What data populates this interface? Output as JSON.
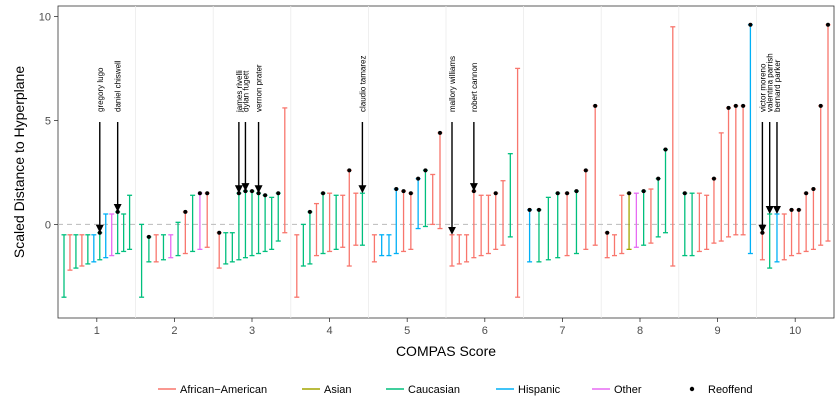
{
  "chart_data": {
    "type": "errorbar-scatter",
    "title": "",
    "xlabel": "COMPAS Score",
    "ylabel": "Scaled Distance to Hyperplane",
    "x_categories": [
      1,
      2,
      3,
      4,
      5,
      6,
      7,
      8,
      9,
      10
    ],
    "ylim": [
      -4.5,
      10.5
    ],
    "yticks": [
      0,
      5,
      10
    ],
    "grid": true,
    "legend_position": "bottom",
    "colors": {
      "African-American": "#F8766D",
      "Asian": "#A3A500",
      "Caucasian": "#00BF7D",
      "Hispanic": "#00B0F6",
      "Other": "#E76BF3",
      "Reoffend": "#000000"
    },
    "legend": {
      "race_entries": [
        "African−American",
        "Asian",
        "Caucasian",
        "Hispanic",
        "Other"
      ],
      "point_entry": "Reoffend"
    },
    "points": [
      {
        "score": 1,
        "race": "Caucasian",
        "y": -0.5,
        "lo": -3.5,
        "hi": -0.5,
        "reoffend": false
      },
      {
        "score": 1,
        "race": "African-American",
        "y": -0.5,
        "lo": -2.2,
        "hi": -0.5,
        "reoffend": false
      },
      {
        "score": 1,
        "race": "Caucasian",
        "y": -0.5,
        "lo": -2.1,
        "hi": -0.5,
        "reoffend": false
      },
      {
        "score": 1,
        "race": "African-American",
        "y": -0.5,
        "lo": -2.0,
        "hi": -0.5,
        "reoffend": false
      },
      {
        "score": 1,
        "race": "Caucasian",
        "y": -0.5,
        "lo": -1.9,
        "hi": -0.5,
        "reoffend": false
      },
      {
        "score": 1,
        "race": "Hispanic",
        "y": -0.5,
        "lo": -1.8,
        "hi": -0.5,
        "reoffend": false
      },
      {
        "score": 1,
        "race": "Caucasian",
        "y": -0.4,
        "lo": -1.7,
        "hi": -0.4,
        "reoffend": true
      },
      {
        "score": 1,
        "race": "Hispanic",
        "y": 0.5,
        "lo": -1.6,
        "hi": 0.5,
        "reoffend": false
      },
      {
        "score": 1,
        "race": "Other",
        "y": 0.5,
        "lo": -1.5,
        "hi": 0.5,
        "reoffend": false
      },
      {
        "score": 1,
        "race": "Caucasian",
        "y": 0.6,
        "lo": -1.4,
        "hi": 0.6,
        "reoffend": true
      },
      {
        "score": 1,
        "race": "Caucasian",
        "y": 0.5,
        "lo": -1.3,
        "hi": 0.5,
        "reoffend": false
      },
      {
        "score": 1,
        "race": "Caucasian",
        "y": 1.4,
        "lo": -1.2,
        "hi": 1.4,
        "reoffend": false
      },
      {
        "score": 2,
        "race": "Caucasian",
        "y": 0.0,
        "lo": -3.5,
        "hi": 0.0,
        "reoffend": false
      },
      {
        "score": 2,
        "race": "Caucasian",
        "y": -0.6,
        "lo": -1.8,
        "hi": -0.6,
        "reoffend": true
      },
      {
        "score": 2,
        "race": "African-American",
        "y": -0.5,
        "lo": -1.8,
        "hi": -0.5,
        "reoffend": false
      },
      {
        "score": 2,
        "race": "Caucasian",
        "y": -0.5,
        "lo": -1.7,
        "hi": -0.5,
        "reoffend": false
      },
      {
        "score": 2,
        "race": "Other",
        "y": -0.5,
        "lo": -1.6,
        "hi": -0.5,
        "reoffend": false
      },
      {
        "score": 2,
        "race": "Caucasian",
        "y": 0.1,
        "lo": -1.5,
        "hi": 0.1,
        "reoffend": false
      },
      {
        "score": 2,
        "race": "African-American",
        "y": 0.6,
        "lo": -1.4,
        "hi": 0.6,
        "reoffend": true
      },
      {
        "score": 2,
        "race": "Caucasian",
        "y": 1.4,
        "lo": -1.3,
        "hi": 1.4,
        "reoffend": false
      },
      {
        "score": 2,
        "race": "Other",
        "y": 1.5,
        "lo": -1.2,
        "hi": 1.5,
        "reoffend": true
      },
      {
        "score": 2,
        "race": "African-American",
        "y": 1.5,
        "lo": -1.1,
        "hi": 1.5,
        "reoffend": true
      },
      {
        "score": 3,
        "race": "African-American",
        "y": -0.4,
        "lo": -2.1,
        "hi": -0.4,
        "reoffend": true
      },
      {
        "score": 3,
        "race": "Caucasian",
        "y": -0.4,
        "lo": -1.9,
        "hi": -0.4,
        "reoffend": false
      },
      {
        "score": 3,
        "race": "Caucasian",
        "y": -0.4,
        "lo": -1.8,
        "hi": -0.4,
        "reoffend": false
      },
      {
        "score": 3,
        "race": "Caucasian",
        "y": 1.5,
        "lo": -1.7,
        "hi": 1.5,
        "reoffend": true
      },
      {
        "score": 3,
        "race": "Caucasian",
        "y": 1.6,
        "lo": -1.6,
        "hi": 1.6,
        "reoffend": true
      },
      {
        "score": 3,
        "race": "Caucasian",
        "y": 1.6,
        "lo": -1.5,
        "hi": 1.6,
        "reoffend": true
      },
      {
        "score": 3,
        "race": "Caucasian",
        "y": 1.5,
        "lo": -1.4,
        "hi": 1.5,
        "reoffend": true
      },
      {
        "score": 3,
        "race": "Caucasian",
        "y": 1.4,
        "lo": -1.3,
        "hi": 1.4,
        "reoffend": true
      },
      {
        "score": 3,
        "race": "Caucasian",
        "y": 1.3,
        "lo": -1.2,
        "hi": 1.3,
        "reoffend": false
      },
      {
        "score": 3,
        "race": "Caucasian",
        "y": 1.5,
        "lo": -0.8,
        "hi": 1.5,
        "reoffend": true
      },
      {
        "score": 3,
        "race": "African-American",
        "y": 5.6,
        "lo": -0.4,
        "hi": 5.6,
        "reoffend": false
      },
      {
        "score": 4,
        "race": "African-American",
        "y": -0.5,
        "lo": -3.5,
        "hi": -0.5,
        "reoffend": false
      },
      {
        "score": 4,
        "race": "Caucasian",
        "y": 0.0,
        "lo": -2.0,
        "hi": 0.0,
        "reoffend": false
      },
      {
        "score": 4,
        "race": "Caucasian",
        "y": 0.6,
        "lo": -1.9,
        "hi": 0.6,
        "reoffend": true
      },
      {
        "score": 4,
        "race": "African-American",
        "y": 1.0,
        "lo": -1.5,
        "hi": 1.0,
        "reoffend": false
      },
      {
        "score": 4,
        "race": "Caucasian",
        "y": 1.5,
        "lo": -1.4,
        "hi": 1.5,
        "reoffend": true
      },
      {
        "score": 4,
        "race": "African-American",
        "y": 1.5,
        "lo": -1.3,
        "hi": 1.5,
        "reoffend": false
      },
      {
        "score": 4,
        "race": "Caucasian",
        "y": 1.4,
        "lo": -1.2,
        "hi": 1.4,
        "reoffend": false
      },
      {
        "score": 4,
        "race": "African-American",
        "y": 1.4,
        "lo": -1.1,
        "hi": 1.4,
        "reoffend": false
      },
      {
        "score": 4,
        "race": "African-American",
        "y": 2.6,
        "lo": -2.0,
        "hi": 2.6,
        "reoffend": true
      },
      {
        "score": 4,
        "race": "African-American",
        "y": 1.5,
        "lo": -1.0,
        "hi": 1.5,
        "reoffend": false
      },
      {
        "score": 4,
        "race": "Caucasian",
        "y": 1.5,
        "lo": -1.0,
        "hi": 1.5,
        "reoffend": false
      },
      {
        "score": 5,
        "race": "African-American",
        "y": -0.5,
        "lo": -1.8,
        "hi": -0.5,
        "reoffend": false
      },
      {
        "score": 5,
        "race": "Hispanic",
        "y": -0.5,
        "lo": -1.5,
        "hi": -0.5,
        "reoffend": false
      },
      {
        "score": 5,
        "race": "Hispanic",
        "y": -0.5,
        "lo": -1.5,
        "hi": -0.5,
        "reoffend": false
      },
      {
        "score": 5,
        "race": "Hispanic",
        "y": 1.7,
        "lo": -1.4,
        "hi": 1.7,
        "reoffend": true
      },
      {
        "score": 5,
        "race": "African-American",
        "y": 1.6,
        "lo": -1.3,
        "hi": 1.6,
        "reoffend": true
      },
      {
        "score": 5,
        "race": "African-American",
        "y": 1.5,
        "lo": -1.2,
        "hi": 1.5,
        "reoffend": true
      },
      {
        "score": 5,
        "race": "Hispanic",
        "y": 2.2,
        "lo": -0.2,
        "hi": 2.2,
        "reoffend": true
      },
      {
        "score": 5,
        "race": "Caucasian",
        "y": 2.6,
        "lo": -0.1,
        "hi": 2.6,
        "reoffend": true
      },
      {
        "score": 5,
        "race": "African-American",
        "y": 2.4,
        "lo": 0.0,
        "hi": 2.4,
        "reoffend": false
      },
      {
        "score": 5,
        "race": "African-American",
        "y": 4.4,
        "lo": -0.2,
        "hi": 4.4,
        "reoffend": true
      },
      {
        "score": 6,
        "race": "African-American",
        "y": -0.5,
        "lo": -2.0,
        "hi": -0.5,
        "reoffend": false
      },
      {
        "score": 6,
        "race": "African-American",
        "y": -0.5,
        "lo": -1.9,
        "hi": -0.5,
        "reoffend": false
      },
      {
        "score": 6,
        "race": "African-American",
        "y": -0.5,
        "lo": -1.8,
        "hi": -0.5,
        "reoffend": false
      },
      {
        "score": 6,
        "race": "African-American",
        "y": 1.6,
        "lo": -1.6,
        "hi": 1.6,
        "reoffend": true
      },
      {
        "score": 6,
        "race": "African-American",
        "y": 1.4,
        "lo": -1.5,
        "hi": 1.4,
        "reoffend": false
      },
      {
        "score": 6,
        "race": "African-American",
        "y": 1.4,
        "lo": -1.4,
        "hi": 1.4,
        "reoffend": false
      },
      {
        "score": 6,
        "race": "African-American",
        "y": 1.5,
        "lo": -1.2,
        "hi": 1.5,
        "reoffend": true
      },
      {
        "score": 6,
        "race": "African-American",
        "y": 2.1,
        "lo": -1.0,
        "hi": 2.1,
        "reoffend": false
      },
      {
        "score": 6,
        "race": "Caucasian",
        "y": 3.4,
        "lo": -0.6,
        "hi": 3.4,
        "reoffend": false
      },
      {
        "score": 6,
        "race": "African-American",
        "y": 7.5,
        "lo": -3.5,
        "hi": 7.5,
        "reoffend": false
      },
      {
        "score": 7,
        "race": "Hispanic",
        "y": 0.7,
        "lo": -1.8,
        "hi": 0.7,
        "reoffend": true
      },
      {
        "score": 7,
        "race": "Caucasian",
        "y": 0.7,
        "lo": -1.8,
        "hi": 0.7,
        "reoffend": true
      },
      {
        "score": 7,
        "race": "Caucasian",
        "y": 1.3,
        "lo": -1.7,
        "hi": 1.3,
        "reoffend": false
      },
      {
        "score": 7,
        "race": "Caucasian",
        "y": 1.5,
        "lo": -1.6,
        "hi": 1.5,
        "reoffend": true
      },
      {
        "score": 7,
        "race": "African-American",
        "y": 1.5,
        "lo": -1.5,
        "hi": 1.5,
        "reoffend": true
      },
      {
        "score": 7,
        "race": "Caucasian",
        "y": 1.6,
        "lo": -1.4,
        "hi": 1.6,
        "reoffend": true
      },
      {
        "score": 7,
        "race": "African-American",
        "y": 2.6,
        "lo": -1.2,
        "hi": 2.6,
        "reoffend": true
      },
      {
        "score": 7,
        "race": "African-American",
        "y": 5.7,
        "lo": -1.0,
        "hi": 5.7,
        "reoffend": true
      },
      {
        "score": 8,
        "race": "African-American",
        "y": -0.4,
        "lo": -1.6,
        "hi": -0.4,
        "reoffend": true
      },
      {
        "score": 8,
        "race": "African-American",
        "y": -0.5,
        "lo": -1.5,
        "hi": -0.5,
        "reoffend": false
      },
      {
        "score": 8,
        "race": "African-American",
        "y": 1.4,
        "lo": -1.4,
        "hi": 1.4,
        "reoffend": false
      },
      {
        "score": 8,
        "race": "Asian",
        "y": 1.5,
        "lo": -1.2,
        "hi": 1.5,
        "reoffend": true
      },
      {
        "score": 8,
        "race": "Other",
        "y": 1.5,
        "lo": -1.1,
        "hi": 1.5,
        "reoffend": false
      },
      {
        "score": 8,
        "race": "Caucasian",
        "y": 1.6,
        "lo": -1.0,
        "hi": 1.6,
        "reoffend": true
      },
      {
        "score": 8,
        "race": "African-American",
        "y": 1.7,
        "lo": -0.9,
        "hi": 1.7,
        "reoffend": false
      },
      {
        "score": 8,
        "race": "Caucasian",
        "y": 2.2,
        "lo": -0.6,
        "hi": 2.2,
        "reoffend": true
      },
      {
        "score": 8,
        "race": "Caucasian",
        "y": 3.6,
        "lo": -0.4,
        "hi": 3.6,
        "reoffend": true
      },
      {
        "score": 8,
        "race": "African-American",
        "y": 9.5,
        "lo": -2.0,
        "hi": 9.5,
        "reoffend": false
      },
      {
        "score": 9,
        "race": "Caucasian",
        "y": 1.5,
        "lo": -1.5,
        "hi": 1.5,
        "reoffend": true
      },
      {
        "score": 9,
        "race": "Caucasian",
        "y": 1.5,
        "lo": -1.5,
        "hi": 1.5,
        "reoffend": false
      },
      {
        "score": 9,
        "race": "African-American",
        "y": 1.5,
        "lo": -1.3,
        "hi": 1.5,
        "reoffend": false
      },
      {
        "score": 9,
        "race": "African-American",
        "y": 1.4,
        "lo": -1.2,
        "hi": 1.4,
        "reoffend": false
      },
      {
        "score": 9,
        "race": "African-American",
        "y": 2.2,
        "lo": -0.9,
        "hi": 2.2,
        "reoffend": true
      },
      {
        "score": 9,
        "race": "African-American",
        "y": 4.4,
        "lo": -0.8,
        "hi": 4.4,
        "reoffend": false
      },
      {
        "score": 9,
        "race": "African-American",
        "y": 5.6,
        "lo": -0.6,
        "hi": 5.6,
        "reoffend": true
      },
      {
        "score": 9,
        "race": "African-American",
        "y": 5.7,
        "lo": -0.5,
        "hi": 5.7,
        "reoffend": true
      },
      {
        "score": 9,
        "race": "African-American",
        "y": 5.7,
        "lo": -0.5,
        "hi": 5.7,
        "reoffend": true
      },
      {
        "score": 9,
        "race": "Hispanic",
        "y": 9.6,
        "lo": -1.4,
        "hi": 9.6,
        "reoffend": true
      },
      {
        "score": 10,
        "race": "African-American",
        "y": -0.4,
        "lo": -1.7,
        "hi": -0.4,
        "reoffend": true
      },
      {
        "score": 10,
        "race": "Caucasian",
        "y": 0.5,
        "lo": -2.1,
        "hi": 0.5,
        "reoffend": false
      },
      {
        "score": 10,
        "race": "Hispanic",
        "y": 0.5,
        "lo": -1.8,
        "hi": 0.5,
        "reoffend": false
      },
      {
        "score": 10,
        "race": "African-American",
        "y": 0.5,
        "lo": -1.7,
        "hi": 0.5,
        "reoffend": false
      },
      {
        "score": 10,
        "race": "African-American",
        "y": 0.7,
        "lo": -1.5,
        "hi": 0.7,
        "reoffend": true
      },
      {
        "score": 10,
        "race": "African-American",
        "y": 0.7,
        "lo": -1.4,
        "hi": 0.7,
        "reoffend": true
      },
      {
        "score": 10,
        "race": "African-American",
        "y": 1.5,
        "lo": -1.3,
        "hi": 1.5,
        "reoffend": true
      },
      {
        "score": 10,
        "race": "African-American",
        "y": 1.7,
        "lo": -1.2,
        "hi": 1.7,
        "reoffend": true
      },
      {
        "score": 10,
        "race": "African-American",
        "y": 5.7,
        "lo": -1.0,
        "hi": 5.7,
        "reoffend": true
      },
      {
        "score": 10,
        "race": "African-American",
        "y": 9.6,
        "lo": -0.8,
        "hi": 9.6,
        "reoffend": true
      }
    ],
    "annotations": [
      {
        "text": "gregory lugo",
        "score": 1,
        "slot": 6
      },
      {
        "text": "daniel chiswell",
        "score": 1,
        "slot": 9
      },
      {
        "text": "james rivelli",
        "score": 3,
        "slot": 3
      },
      {
        "text": "dylan fugett",
        "score": 3,
        "slot": 4
      },
      {
        "text": "vernon prater",
        "score": 3,
        "slot": 6
      },
      {
        "text": "claudio tamarez",
        "score": 4,
        "slot": 10
      },
      {
        "text": "mallory williams",
        "score": 6,
        "slot": 0
      },
      {
        "text": "robert cannon",
        "score": 6,
        "slot": 3
      },
      {
        "text": "victor moreno",
        "score": 10,
        "slot": 0
      },
      {
        "text": "valentina parrish",
        "score": 10,
        "slot": 1
      },
      {
        "text": "bernard parker",
        "score": 10,
        "slot": 2
      }
    ]
  }
}
